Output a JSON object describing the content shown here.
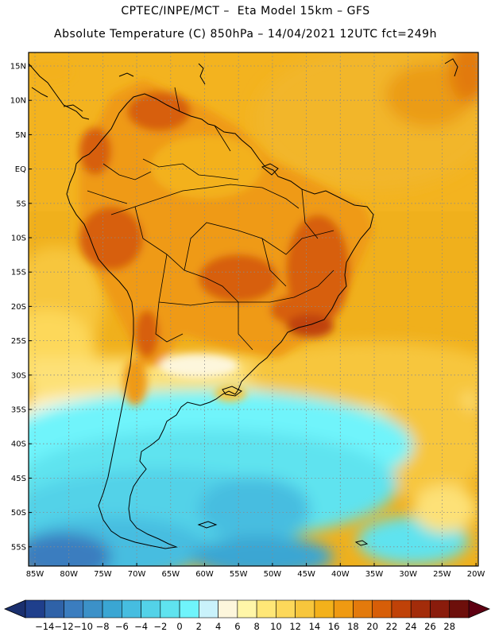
{
  "header": {
    "line1": "CPTEC/INPE/MCT –  Eta Model 15km – GFS",
    "line2": "Absolute Temperature (C) 850hPa – 14/04/2021 12UTC fct=249h"
  },
  "map": {
    "lat_labels": [
      "15N",
      "10N",
      "5N",
      "EQ",
      "5S",
      "10S",
      "15S",
      "20S",
      "25S",
      "30S",
      "35S",
      "40S",
      "45S",
      "50S",
      "55S"
    ],
    "lon_labels": [
      "85W",
      "80W",
      "75W",
      "70W",
      "65W",
      "60W",
      "55W",
      "50W",
      "45W",
      "40W",
      "35W",
      "30W",
      "25W",
      "20W"
    ],
    "grid": true
  },
  "colorbar": {
    "labels": [
      "-14",
      "-12",
      "-10",
      "-8",
      "-6",
      "-4",
      "-2",
      "0",
      "2",
      "4",
      "6",
      "8",
      "10",
      "12",
      "14",
      "16",
      "18",
      "20",
      "22",
      "24",
      "26",
      "28"
    ],
    "colors": [
      "#1f3f8c",
      "#2f62a8",
      "#3b7dbf",
      "#3c91c8",
      "#3aa6d3",
      "#46bde0",
      "#53d2e8",
      "#5fe3ef",
      "#6ff4fb",
      "#c9f2fb",
      "#fdf6dc",
      "#fff6a8",
      "#ffe777",
      "#fdd85a",
      "#f7c63c",
      "#f3b11b",
      "#ef9a12",
      "#e37a0c",
      "#d75e08",
      "#c04208",
      "#a32c0a",
      "#8a1c0c",
      "#6d0f0b"
    ],
    "under_color": "#1a2f6e",
    "over_color": "#5e0012"
  },
  "colors": {
    "frame": "#000000",
    "grid": "#8a8a8a",
    "coast": "#000000"
  }
}
